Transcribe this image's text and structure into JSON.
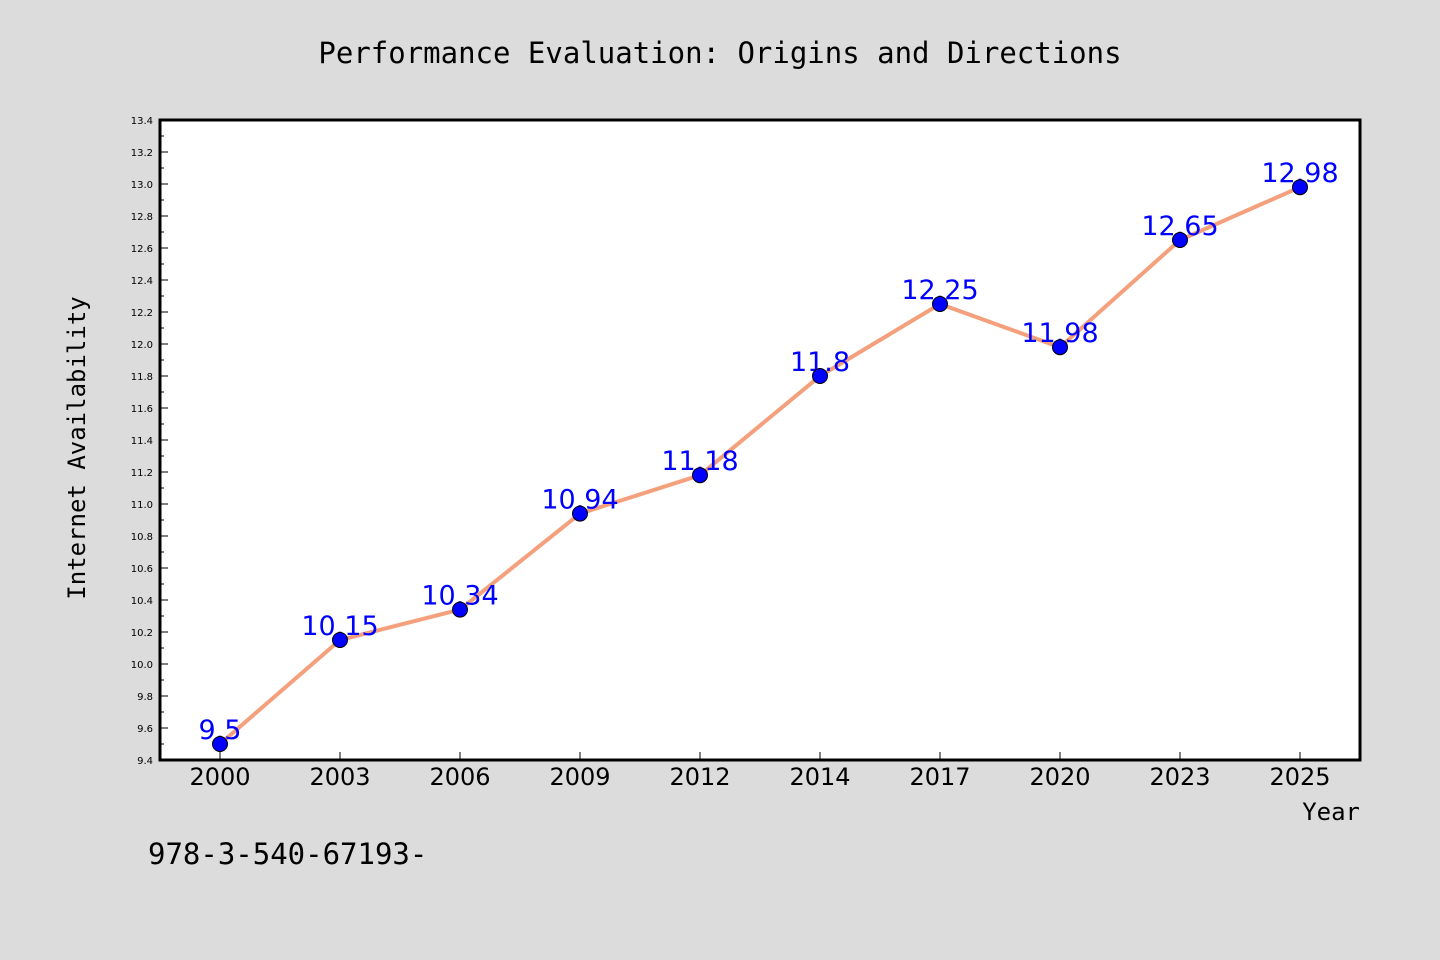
{
  "chart_data": {
    "type": "line",
    "title": "Performance Evaluation: Origins and Directions",
    "xlabel": "Year",
    "ylabel": "Internet Availability",
    "categories": [
      "2000",
      "2003",
      "2006",
      "2009",
      "2012",
      "2014",
      "2017",
      "2020",
      "2023",
      "2025"
    ],
    "values": [
      9.5,
      10.15,
      10.34,
      10.94,
      11.18,
      11.8,
      12.25,
      11.98,
      12.65,
      12.98
    ],
    "data_labels": [
      "9.5",
      "10.15",
      "10.34",
      "10.94",
      "11.18",
      "11.8",
      "12.25",
      "11.98",
      "12.65",
      "12.98"
    ],
    "ylim": [
      9.4,
      13.4
    ],
    "yticks": [
      "9.4",
      "9.6",
      "9.8",
      "10.0",
      "10.2",
      "10.4",
      "10.6",
      "10.8",
      "11.0",
      "11.2",
      "11.4",
      "11.6",
      "11.8",
      "12.0",
      "12.2",
      "12.4",
      "12.6",
      "12.8",
      "13.0",
      "13.2",
      "13.4"
    ],
    "grid": false,
    "line_color": "#f4a07c",
    "marker_color": "#0000ff",
    "label_color": "#0000ff"
  },
  "footer": {
    "text": "978-3-540-67193-"
  }
}
